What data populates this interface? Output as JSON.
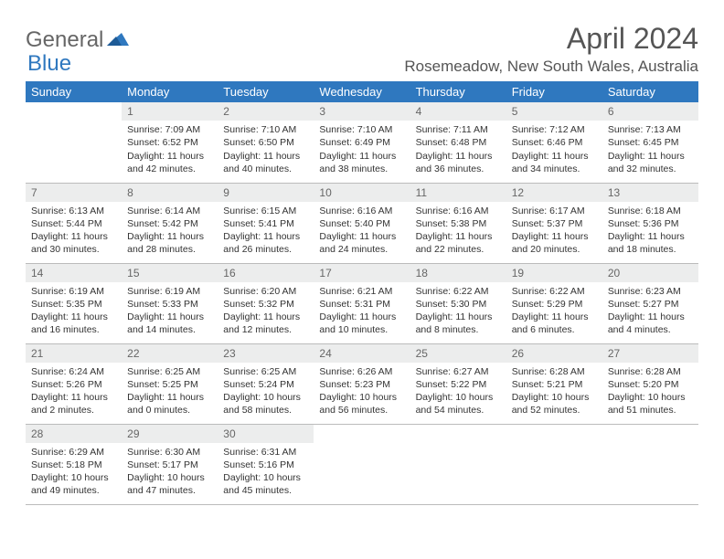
{
  "logo": {
    "text1": "General",
    "text2": "Blue"
  },
  "title": "April 2024",
  "location": "Rosemeadow, New South Wales, Australia",
  "colors": {
    "header_bg": "#2f78bf",
    "header_text": "#ffffff",
    "daynum_bg": "#eceded",
    "text": "#333333",
    "page_bg": "#ffffff"
  },
  "typography": {
    "title_fontsize": 32,
    "location_fontsize": 17,
    "weekday_fontsize": 13,
    "daynum_fontsize": 12,
    "body_fontsize": 10.5
  },
  "weekdays": [
    "Sunday",
    "Monday",
    "Tuesday",
    "Wednesday",
    "Thursday",
    "Friday",
    "Saturday"
  ],
  "weeks": [
    [
      {
        "n": "",
        "sr": "",
        "ss": "",
        "dl": ""
      },
      {
        "n": "1",
        "sr": "Sunrise: 7:09 AM",
        "ss": "Sunset: 6:52 PM",
        "dl": "Daylight: 11 hours and 42 minutes."
      },
      {
        "n": "2",
        "sr": "Sunrise: 7:10 AM",
        "ss": "Sunset: 6:50 PM",
        "dl": "Daylight: 11 hours and 40 minutes."
      },
      {
        "n": "3",
        "sr": "Sunrise: 7:10 AM",
        "ss": "Sunset: 6:49 PM",
        "dl": "Daylight: 11 hours and 38 minutes."
      },
      {
        "n": "4",
        "sr": "Sunrise: 7:11 AM",
        "ss": "Sunset: 6:48 PM",
        "dl": "Daylight: 11 hours and 36 minutes."
      },
      {
        "n": "5",
        "sr": "Sunrise: 7:12 AM",
        "ss": "Sunset: 6:46 PM",
        "dl": "Daylight: 11 hours and 34 minutes."
      },
      {
        "n": "6",
        "sr": "Sunrise: 7:13 AM",
        "ss": "Sunset: 6:45 PM",
        "dl": "Daylight: 11 hours and 32 minutes."
      }
    ],
    [
      {
        "n": "7",
        "sr": "Sunrise: 6:13 AM",
        "ss": "Sunset: 5:44 PM",
        "dl": "Daylight: 11 hours and 30 minutes."
      },
      {
        "n": "8",
        "sr": "Sunrise: 6:14 AM",
        "ss": "Sunset: 5:42 PM",
        "dl": "Daylight: 11 hours and 28 minutes."
      },
      {
        "n": "9",
        "sr": "Sunrise: 6:15 AM",
        "ss": "Sunset: 5:41 PM",
        "dl": "Daylight: 11 hours and 26 minutes."
      },
      {
        "n": "10",
        "sr": "Sunrise: 6:16 AM",
        "ss": "Sunset: 5:40 PM",
        "dl": "Daylight: 11 hours and 24 minutes."
      },
      {
        "n": "11",
        "sr": "Sunrise: 6:16 AM",
        "ss": "Sunset: 5:38 PM",
        "dl": "Daylight: 11 hours and 22 minutes."
      },
      {
        "n": "12",
        "sr": "Sunrise: 6:17 AM",
        "ss": "Sunset: 5:37 PM",
        "dl": "Daylight: 11 hours and 20 minutes."
      },
      {
        "n": "13",
        "sr": "Sunrise: 6:18 AM",
        "ss": "Sunset: 5:36 PM",
        "dl": "Daylight: 11 hours and 18 minutes."
      }
    ],
    [
      {
        "n": "14",
        "sr": "Sunrise: 6:19 AM",
        "ss": "Sunset: 5:35 PM",
        "dl": "Daylight: 11 hours and 16 minutes."
      },
      {
        "n": "15",
        "sr": "Sunrise: 6:19 AM",
        "ss": "Sunset: 5:33 PM",
        "dl": "Daylight: 11 hours and 14 minutes."
      },
      {
        "n": "16",
        "sr": "Sunrise: 6:20 AM",
        "ss": "Sunset: 5:32 PM",
        "dl": "Daylight: 11 hours and 12 minutes."
      },
      {
        "n": "17",
        "sr": "Sunrise: 6:21 AM",
        "ss": "Sunset: 5:31 PM",
        "dl": "Daylight: 11 hours and 10 minutes."
      },
      {
        "n": "18",
        "sr": "Sunrise: 6:22 AM",
        "ss": "Sunset: 5:30 PM",
        "dl": "Daylight: 11 hours and 8 minutes."
      },
      {
        "n": "19",
        "sr": "Sunrise: 6:22 AM",
        "ss": "Sunset: 5:29 PM",
        "dl": "Daylight: 11 hours and 6 minutes."
      },
      {
        "n": "20",
        "sr": "Sunrise: 6:23 AM",
        "ss": "Sunset: 5:27 PM",
        "dl": "Daylight: 11 hours and 4 minutes."
      }
    ],
    [
      {
        "n": "21",
        "sr": "Sunrise: 6:24 AM",
        "ss": "Sunset: 5:26 PM",
        "dl": "Daylight: 11 hours and 2 minutes."
      },
      {
        "n": "22",
        "sr": "Sunrise: 6:25 AM",
        "ss": "Sunset: 5:25 PM",
        "dl": "Daylight: 11 hours and 0 minutes."
      },
      {
        "n": "23",
        "sr": "Sunrise: 6:25 AM",
        "ss": "Sunset: 5:24 PM",
        "dl": "Daylight: 10 hours and 58 minutes."
      },
      {
        "n": "24",
        "sr": "Sunrise: 6:26 AM",
        "ss": "Sunset: 5:23 PM",
        "dl": "Daylight: 10 hours and 56 minutes."
      },
      {
        "n": "25",
        "sr": "Sunrise: 6:27 AM",
        "ss": "Sunset: 5:22 PM",
        "dl": "Daylight: 10 hours and 54 minutes."
      },
      {
        "n": "26",
        "sr": "Sunrise: 6:28 AM",
        "ss": "Sunset: 5:21 PM",
        "dl": "Daylight: 10 hours and 52 minutes."
      },
      {
        "n": "27",
        "sr": "Sunrise: 6:28 AM",
        "ss": "Sunset: 5:20 PM",
        "dl": "Daylight: 10 hours and 51 minutes."
      }
    ],
    [
      {
        "n": "28",
        "sr": "Sunrise: 6:29 AM",
        "ss": "Sunset: 5:18 PM",
        "dl": "Daylight: 10 hours and 49 minutes."
      },
      {
        "n": "29",
        "sr": "Sunrise: 6:30 AM",
        "ss": "Sunset: 5:17 PM",
        "dl": "Daylight: 10 hours and 47 minutes."
      },
      {
        "n": "30",
        "sr": "Sunrise: 6:31 AM",
        "ss": "Sunset: 5:16 PM",
        "dl": "Daylight: 10 hours and 45 minutes."
      },
      {
        "n": "",
        "sr": "",
        "ss": "",
        "dl": ""
      },
      {
        "n": "",
        "sr": "",
        "ss": "",
        "dl": ""
      },
      {
        "n": "",
        "sr": "",
        "ss": "",
        "dl": ""
      },
      {
        "n": "",
        "sr": "",
        "ss": "",
        "dl": ""
      }
    ]
  ]
}
